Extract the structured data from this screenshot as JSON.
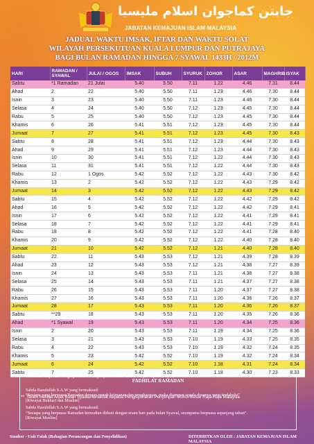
{
  "header": {
    "jawi": "جابتن كماجوان اسلام مليسيا",
    "agency": "JABATAN KEMAJUAN ISLAM MALAYSIA"
  },
  "titles": [
    "JADUAL WAKTU IMSAK, IFTAR DAN WAKTU SOLAT",
    "WILAYAH PERSEKUTUAN KUALA LUMPUR DAN PUTRAJAYA",
    "BAGI BULAN RAMADAN HINGGA 7 SYAWAL 1433H / 2012M"
  ],
  "table": {
    "columns": [
      "HARI",
      "RAMADAN / SYAWAL",
      "JULAI / OGOS",
      "IMSAK",
      "SUBUH",
      "SYURUK",
      "ZOHOR",
      "ASAR",
      "MAGHRIB",
      "ISYAK"
    ],
    "rows": [
      {
        "cells": [
          "Sabtu",
          "*1 Ramadan",
          "21 Julai",
          "5.40",
          "5.50",
          "7.11",
          "1.22",
          "4.46",
          "7.31",
          "8.44"
        ],
        "background": "#f4a3cb"
      },
      {
        "cells": [
          "Ahad",
          "2",
          "22",
          "5.40",
          "5.50",
          "7.11",
          "1.23",
          "4.46",
          "7.30",
          "8.44"
        ]
      },
      {
        "cells": [
          "Isnin",
          "3",
          "23",
          "5.40",
          "5.50",
          "7.11",
          "1.23",
          "4.46",
          "7.30",
          "8.44"
        ]
      },
      {
        "cells": [
          "Selasa",
          "4",
          "24",
          "5.40",
          "5.50",
          "7.12",
          "1.23",
          "4.45",
          "7.30",
          "8.44"
        ]
      },
      {
        "cells": [
          "Rabu",
          "5",
          "25",
          "5.40",
          "5.50",
          "7.12",
          "1.23",
          "4.45",
          "7.30",
          "8.44"
        ]
      },
      {
        "cells": [
          "Khamis",
          "6",
          "26",
          "5.41",
          "5.51",
          "7.12",
          "1.23",
          "4.45",
          "7.30",
          "8.44"
        ]
      },
      {
        "cells": [
          "Jumaat",
          "7",
          "27",
          "5.41",
          "5.51",
          "7.12",
          "1.23",
          "4.45",
          "7.30",
          "8.43"
        ],
        "background": "#f6e64a"
      },
      {
        "cells": [
          "Sabtu",
          "8",
          "28",
          "5.41",
          "5.51",
          "7.12",
          "1.23",
          "4.44",
          "7.30",
          "8.43"
        ]
      },
      {
        "cells": [
          "Ahad",
          "9",
          "29",
          "5.41",
          "5.51",
          "7.12",
          "1.23",
          "4.44",
          "7.30",
          "8.43"
        ]
      },
      {
        "cells": [
          "Isnin",
          "10",
          "30",
          "5.41",
          "5.51",
          "7.12",
          "1.22",
          "4.44",
          "7.30",
          "8.43"
        ]
      },
      {
        "cells": [
          "Selasa",
          "11",
          "31",
          "5.41",
          "5.51",
          "7.12",
          "1.22",
          "4.44",
          "7.30",
          "8.43"
        ]
      },
      {
        "cells": [
          "Rabu",
          "12",
          "1 Ogos",
          "5.42",
          "5.52",
          "7.12",
          "1.22",
          "4.43",
          "7.30",
          "8.42"
        ]
      },
      {
        "cells": [
          "Khamis",
          "13",
          "2",
          "5.42",
          "5.52",
          "7.12",
          "1.22",
          "4.43",
          "7.29",
          "8.42"
        ]
      },
      {
        "cells": [
          "Jumaat",
          "14",
          "3",
          "5.42",
          "5.52",
          "7.12",
          "1.22",
          "4.43",
          "7.29",
          "8.42"
        ],
        "background": "#f6e64a"
      },
      {
        "cells": [
          "Sabtu",
          "15",
          "4",
          "5.42",
          "5.52",
          "7.12",
          "1.22",
          "4.42",
          "7.29",
          "8.42"
        ]
      },
      {
        "cells": [
          "Ahad",
          "16",
          "5",
          "5.42",
          "5.52",
          "7.12",
          "1.22",
          "4.42",
          "7.29",
          "8.41"
        ]
      },
      {
        "cells": [
          "Isnin",
          "17",
          "6",
          "5.42",
          "5.52",
          "7.12",
          "1.22",
          "4.41",
          "7.29",
          "8.41"
        ]
      },
      {
        "cells": [
          "Selasa",
          "18",
          "7",
          "5.42",
          "5.52",
          "7.12",
          "1.22",
          "4.41",
          "7.29",
          "8.41"
        ]
      },
      {
        "cells": [
          "Rabu",
          "19",
          "8",
          "5.42",
          "5.52",
          "7.12",
          "1.22",
          "4.41",
          "7.28",
          "8.40"
        ]
      },
      {
        "cells": [
          "Khamis",
          "20",
          "9",
          "5.42",
          "5.52",
          "7.12",
          "1.22",
          "4.40",
          "7.28",
          "8.40"
        ]
      },
      {
        "cells": [
          "Jumaat",
          "21",
          "10",
          "5.42",
          "5.52",
          "7.12",
          "1.21",
          "4.40",
          "7.28",
          "8.40"
        ],
        "background": "#f6e64a"
      },
      {
        "cells": [
          "Sabtu",
          "22",
          "11",
          "5.43",
          "5.53",
          "7.12",
          "1.21",
          "4.39",
          "7.28",
          "8.39"
        ]
      },
      {
        "cells": [
          "Ahad",
          "23",
          "12",
          "5.43",
          "5.53",
          "7.12",
          "1.21",
          "4.38",
          "7.27",
          "8.39"
        ]
      },
      {
        "cells": [
          "Isnin",
          "24",
          "13",
          "5.43",
          "5.53",
          "7.11",
          "1.21",
          "4.38",
          "7.27",
          "8.38"
        ]
      },
      {
        "cells": [
          "Selasa",
          "25",
          "14",
          "5.43",
          "5.53",
          "7.11",
          "1.21",
          "4.37",
          "7.27",
          "8.38"
        ]
      },
      {
        "cells": [
          "Rabu",
          "26",
          "15",
          "5.43",
          "5.53",
          "7.11",
          "1.20",
          "4.37",
          "7.27",
          "8.38"
        ]
      },
      {
        "cells": [
          "Khamis",
          "27",
          "16",
          "5.43",
          "5.53",
          "7.11",
          "1.20",
          "4.36",
          "7.26",
          "8.37"
        ]
      },
      {
        "cells": [
          "Jumaat",
          "28",
          "17",
          "5.43",
          "5.53",
          "7.11",
          "1.20",
          "4.36",
          "7.26",
          "8.37"
        ],
        "background": "#f6e64a"
      },
      {
        "cells": [
          "Sabtu",
          "**29",
          "18",
          "5.43",
          "5.53",
          "7.11",
          "1.20",
          "4.35",
          "7.26",
          "8.36"
        ]
      },
      {
        "cells": [
          "Ahad",
          "*1 Syawal",
          "19",
          "5.43",
          "5.53",
          "7.11",
          "1.20",
          "4.34",
          "7.25",
          "8.36"
        ],
        "background": "#f4a3cb"
      },
      {
        "cells": [
          "Isnin",
          "2",
          "20",
          "5.43",
          "5.53",
          "7.11",
          "1.19",
          "4.34",
          "7.25",
          "8.36"
        ]
      },
      {
        "cells": [
          "Selasa",
          "3",
          "21",
          "5.43",
          "5.53",
          "7.10",
          "1.19",
          "4.33",
          "7.25",
          "8.35"
        ]
      },
      {
        "cells": [
          "Rabu",
          "4",
          "22",
          "5.43",
          "5.53",
          "7.10",
          "1.19",
          "4.32",
          "7.24",
          "8.35"
        ]
      },
      {
        "cells": [
          "Khamis",
          "5",
          "23",
          "5.42",
          "5.52",
          "7.10",
          "1.19",
          "4.32",
          "7.24",
          "8.34"
        ]
      },
      {
        "cells": [
          "Jumaat",
          "6",
          "24",
          "5.42",
          "5.52",
          "7.10",
          "1.18",
          "4.31",
          "7.24",
          "8.34"
        ],
        "background": "#f6e64a"
      },
      {
        "cells": [
          "Sabtu",
          "7",
          "25",
          "5.42",
          "5.52",
          "7.10",
          "1.18",
          "4.30",
          "7.23",
          "8.33"
        ]
      }
    ]
  },
  "footnotes": [
    "*   Tertakluk kepada Pengisytiharan Penyimpan Mohor Besar Raja-Raja Malaysia",
    "**  Tarikh melihat Anak Bulan Syawal tertakluk kepada Pengisytiharan Penyimpan Mohor Besar Raja-Raja Malaysia"
  ],
  "fadhilat": {
    "title": "FADHILAT RAMADAN",
    "hadith": [
      {
        "intro": "Sabda Rasulullah S.A.W yang bermaksud:",
        "text": "“Sesiapa yang berpuasa Ramadan dengan penuh keimanan dan pengharapan, maka diampun segala dosanya yang terdahulu”",
        "source": "[Riwayat Bukhari dan Muslim]"
      },
      {
        "intro": "Sabda Rasulullah S.A.W yang bermaksud:",
        "text": "“Sesiapa yang berpuasa Ramadan kemudian diikuti dengan enam hari pada bulan Syawal, seumpama berpuasa sepanjang tahun”.",
        "source": "[Riwayat Muslim]"
      }
    ]
  },
  "footer": {
    "source": "Sumber - Unit Falak (Bahagian Perancangan dan Penyelidikan)",
    "publisher": "DITERBITKAN OLEH : JABATAN KEMAJUAN ISLAM MALAYSIA"
  }
}
